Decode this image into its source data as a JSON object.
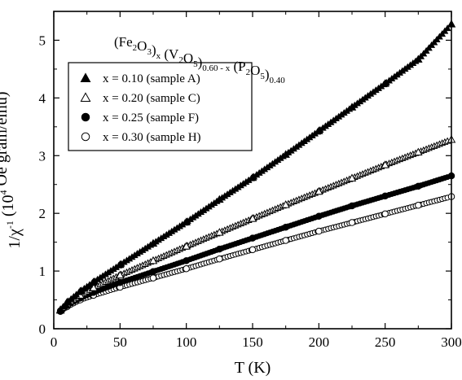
{
  "chart_data": {
    "type": "scatter",
    "title_parts": [
      {
        "t": "(Fe",
        "s": false
      },
      {
        "t": "2",
        "s": true
      },
      {
        "t": "O",
        "s": false
      },
      {
        "t": "3",
        "s": true
      },
      {
        "t": ")",
        "s": false
      },
      {
        "t": "x",
        "s": true
      },
      {
        "t": " (V",
        "s": false
      },
      {
        "t": "2",
        "s": true
      },
      {
        "t": "O",
        "s": false
      },
      {
        "t": "5",
        "s": true
      },
      {
        "t": ")",
        "s": false
      },
      {
        "t": "0.60 - x",
        "s": true
      },
      {
        "t": " (P",
        "s": false
      },
      {
        "t": "2",
        "s": true
      },
      {
        "t": "O",
        "s": false
      },
      {
        "t": "5",
        "s": true
      },
      {
        "t": ")",
        "s": false
      },
      {
        "t": "0.40",
        "s": true
      }
    ],
    "xlabel": "T (K)",
    "ylabel": {
      "main": "1/χ",
      "sup": "-1",
      "rest": " (10",
      "sup2": "4",
      "tail": " Oe gram/emu)"
    },
    "xlim": [
      0,
      300
    ],
    "ylim": [
      0,
      5.5
    ],
    "xticks": [
      0,
      50,
      100,
      150,
      200,
      250,
      300
    ],
    "yticks": [
      0,
      1,
      2,
      3,
      4,
      5
    ],
    "grid": false,
    "legend_position": "top-left",
    "series": [
      {
        "name": "x = 0.10 (sample A)",
        "marker": "triangle-filled",
        "x": [
          5,
          10,
          20,
          30,
          50,
          75,
          100,
          125,
          150,
          175,
          200,
          225,
          250,
          275,
          300
        ],
        "y": [
          0.33,
          0.46,
          0.65,
          0.81,
          1.11,
          1.48,
          1.85,
          2.24,
          2.62,
          3.02,
          3.43,
          3.84,
          4.25,
          4.67,
          5.28
        ]
      },
      {
        "name": "x = 0.20 (sample C)",
        "marker": "triangle-open",
        "x": [
          5,
          10,
          20,
          30,
          50,
          75,
          100,
          125,
          150,
          175,
          200,
          225,
          250,
          275,
          300
        ],
        "y": [
          0.32,
          0.43,
          0.58,
          0.71,
          0.93,
          1.18,
          1.43,
          1.67,
          1.91,
          2.15,
          2.38,
          2.61,
          2.84,
          3.06,
          3.28
        ]
      },
      {
        "name": "x = 0.25 (sample F)",
        "marker": "circle-filled",
        "x": [
          5,
          10,
          20,
          30,
          50,
          75,
          100,
          125,
          150,
          175,
          200,
          225,
          250,
          275,
          300
        ],
        "y": [
          0.31,
          0.4,
          0.53,
          0.63,
          0.8,
          0.99,
          1.18,
          1.38,
          1.57,
          1.76,
          1.95,
          2.13,
          2.3,
          2.47,
          2.65
        ]
      },
      {
        "name": "x = 0.30 (sample H)",
        "marker": "circle-open",
        "x": [
          5,
          10,
          20,
          30,
          50,
          75,
          100,
          125,
          150,
          175,
          200,
          225,
          250,
          275,
          300
        ],
        "y": [
          0.3,
          0.38,
          0.5,
          0.58,
          0.72,
          0.88,
          1.04,
          1.21,
          1.37,
          1.53,
          1.69,
          1.84,
          1.99,
          2.14,
          2.29
        ]
      }
    ]
  }
}
